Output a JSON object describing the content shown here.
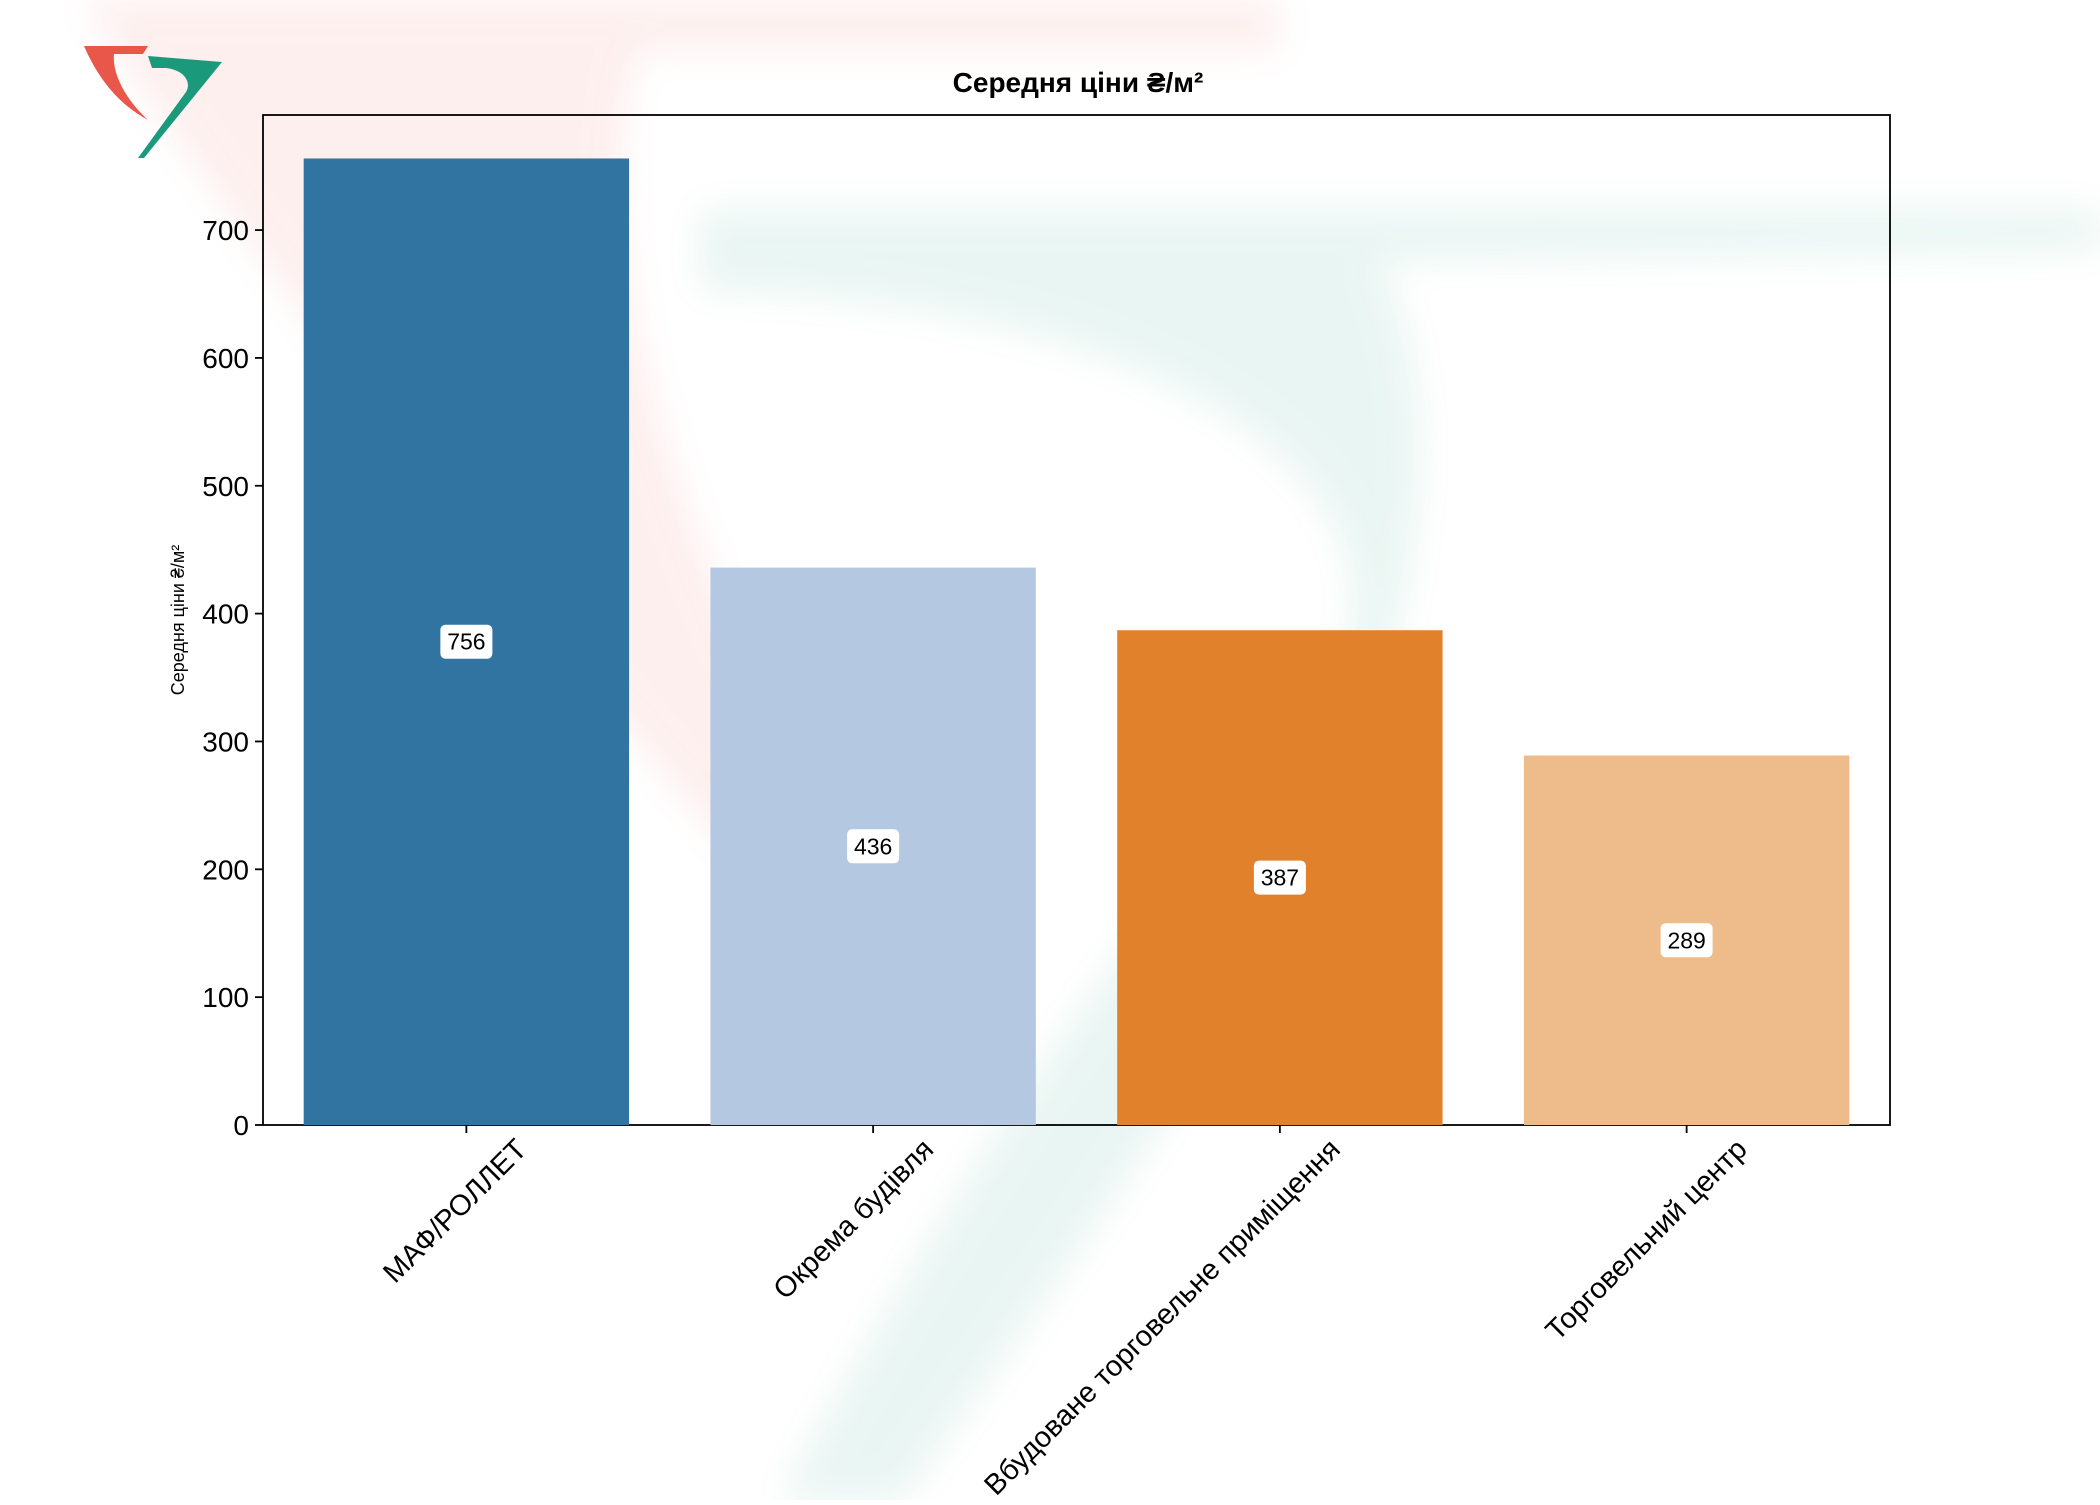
{
  "colors": {
    "watermark_red": "#e8574a",
    "watermark_green": "#1a9a7a",
    "axis": "#000000",
    "label_box": "#ffffff"
  },
  "chart_data": {
    "type": "bar",
    "title": "Середня ціни ₴/м²",
    "xlabel": "",
    "ylabel": "Середня ціни ₴/м²",
    "ylim": [
      0,
      790
    ],
    "yticks": [
      0,
      100,
      200,
      300,
      400,
      500,
      600,
      700
    ],
    "categories": [
      "МАФ/РОЛЛЕТ",
      "Окрема будівля",
      "Вбудоване торговельне приміщення",
      "Торговельний центр"
    ],
    "values": [
      756,
      436,
      387,
      289
    ],
    "data_labels": [
      "756",
      "436",
      "387",
      "289"
    ],
    "bar_colors": [
      "#3274a1",
      "#b5c8e1",
      "#e1812c",
      "#eebc8a"
    ],
    "grid": false,
    "legend": "none"
  }
}
